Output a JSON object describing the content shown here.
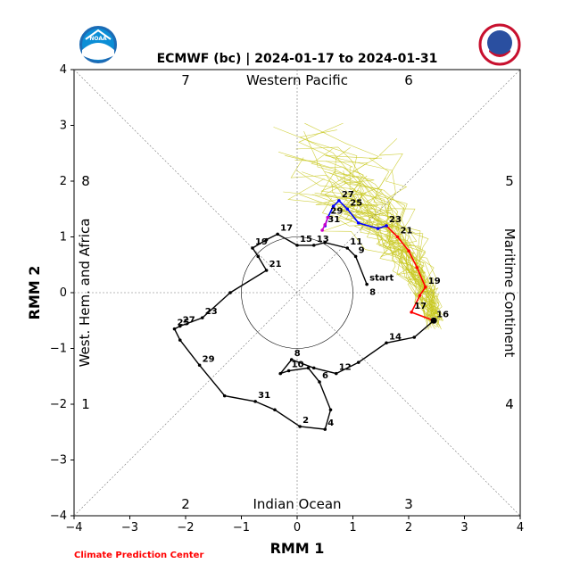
{
  "chart_data": {
    "type": "line",
    "title": "ECMWF (bc) | 2024-01-17 to 2024-01-31",
    "xlabel": "RMM 1",
    "ylabel": "RMM 2",
    "xlim": [
      -4,
      4
    ],
    "ylim": [
      -4,
      4
    ],
    "xticks": [
      "−4",
      "−3",
      "−2",
      "−1",
      "0",
      "1",
      "2",
      "3",
      "4"
    ],
    "yticks": [
      "−4",
      "−3",
      "−2",
      "−1",
      "0",
      "1",
      "2",
      "3",
      "4"
    ],
    "phases": [
      "1",
      "2",
      "3",
      "4",
      "5",
      "6",
      "7",
      "8"
    ],
    "regions": {
      "top": "Western Pacific",
      "bottom": "Indian Ocean",
      "left": "West. Hem. and Africa",
      "right": "Maritime Continent"
    },
    "credit": "Climate Prediction Center",
    "logos": {
      "left": "NOAA",
      "right": "NATIONAL WEATHER SERVICE"
    },
    "colors": {
      "observed": "#000000",
      "forecast_week1": "#ff0000",
      "forecast_week2": "#0000ff",
      "forecast_end": "#cc00cc",
      "ensemble": "#c8c81e"
    },
    "series": [
      {
        "role": "observed",
        "x": [
          1.25,
          1.05,
          0.9,
          0.5,
          0.3,
          0.0,
          -0.35,
          -0.55,
          -0.8,
          -0.7,
          -0.55,
          -1.2,
          -1.7,
          -2.1,
          -2.2,
          -2.1,
          -1.75,
          -1.3,
          -0.75,
          -0.4,
          0.05,
          0.5,
          0.6,
          0.4,
          0.2,
          -0.15,
          -0.3,
          -0.1,
          0.3,
          0.7,
          1.1,
          1.6,
          2.1,
          2.45
        ],
        "y": [
          0.15,
          0.65,
          0.8,
          0.9,
          0.85,
          0.85,
          1.05,
          0.95,
          0.8,
          0.65,
          0.4,
          0.0,
          -0.45,
          -0.6,
          -0.65,
          -0.85,
          -1.3,
          -1.85,
          -1.95,
          -2.1,
          -2.4,
          -2.45,
          -2.1,
          -1.6,
          -1.35,
          -1.4,
          -1.45,
          -1.2,
          -1.35,
          -1.45,
          -1.25,
          -0.9,
          -0.8,
          -0.5
        ],
        "labels": [
          {
            "i": 0,
            "text": "start"
          },
          {
            "i": 0,
            "text": "8"
          },
          {
            "i": 1,
            "text": "9"
          },
          {
            "i": 2,
            "text": "11"
          },
          {
            "i": 4,
            "text": "13"
          },
          {
            "i": 5,
            "text": "15"
          },
          {
            "i": 6,
            "text": "17"
          },
          {
            "i": 8,
            "text": "19"
          },
          {
            "i": 10,
            "text": "21"
          },
          {
            "i": 12,
            "text": "23"
          },
          {
            "i": 14,
            "text": "25"
          },
          {
            "i": 13,
            "text": "27"
          },
          {
            "i": 16,
            "text": "29"
          },
          {
            "i": 18,
            "text": "31"
          },
          {
            "i": 20,
            "text": "2"
          },
          {
            "i": 21,
            "text": "4"
          },
          {
            "i": 23,
            "text": "6"
          },
          {
            "i": 27,
            "text": "8"
          },
          {
            "i": 25,
            "text": "10"
          },
          {
            "i": 29,
            "text": "12"
          },
          {
            "i": 31,
            "text": "14"
          },
          {
            "i": 33,
            "text": "16"
          }
        ]
      },
      {
        "role": "forecast_week1",
        "x": [
          2.45,
          2.05,
          2.2,
          2.3,
          2.15,
          2.0,
          1.8,
          1.6
        ],
        "y": [
          -0.5,
          -0.35,
          -0.05,
          0.1,
          0.45,
          0.75,
          1.0,
          1.2
        ],
        "labels": [
          {
            "i": 1,
            "text": "17"
          },
          {
            "i": 3,
            "text": "19"
          },
          {
            "i": 6,
            "text": "21"
          },
          {
            "i": 7,
            "text": "23"
          }
        ]
      },
      {
        "role": "forecast_week2",
        "x": [
          1.6,
          1.45,
          1.1,
          0.9,
          0.75,
          0.65,
          0.55,
          0.5
        ],
        "y": [
          1.2,
          1.15,
          1.25,
          1.5,
          1.65,
          1.55,
          1.35,
          1.2
        ],
        "labels": [
          {
            "i": 3,
            "text": "25"
          },
          {
            "i": 4,
            "text": "27"
          },
          {
            "i": 6,
            "text": "29"
          },
          {
            "i": 7,
            "text": "31"
          }
        ]
      },
      {
        "role": "forecast_end",
        "x": [
          0.55,
          0.5,
          0.45
        ],
        "y": [
          1.35,
          1.22,
          1.12
        ],
        "labels": []
      }
    ]
  }
}
